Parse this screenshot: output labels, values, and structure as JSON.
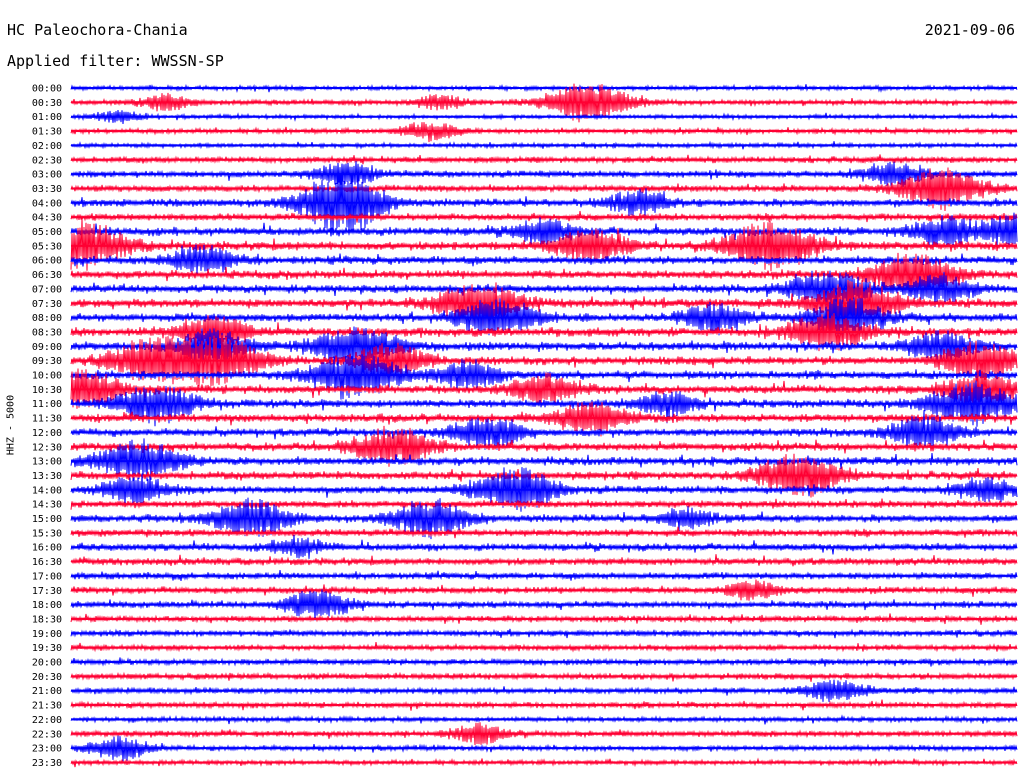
{
  "header": {
    "station": "HC Paleochora-Chania",
    "date": "2021-09-06",
    "filter_text": "Applied filter: WWSSN-SP"
  },
  "channel_label": "HHZ - 5000",
  "colors": {
    "odd": "#0000ff",
    "even": "#ff0033",
    "text": "#000000"
  },
  "chart_data": {
    "type": "line",
    "title": "HC Paleochora-Chania",
    "ylabel": "HHZ - 5000",
    "series": [
      {
        "time": "00:00",
        "color": "blue",
        "activity": 0.15
      },
      {
        "time": "00:30",
        "color": "red",
        "activity": 0.2,
        "events": [
          [
            0.1,
            0.35
          ],
          [
            0.39,
            0.3
          ],
          [
            0.545,
            0.9
          ]
        ]
      },
      {
        "time": "01:00",
        "color": "blue",
        "activity": 0.12,
        "events": [
          [
            0.05,
            0.25
          ]
        ]
      },
      {
        "time": "01:30",
        "color": "red",
        "activity": 0.2,
        "events": [
          [
            0.38,
            0.4
          ]
        ]
      },
      {
        "time": "02:00",
        "color": "blue",
        "activity": 0.15
      },
      {
        "time": "02:30",
        "color": "red",
        "activity": 0.3
      },
      {
        "time": "03:00",
        "color": "blue",
        "activity": 0.35,
        "events": [
          [
            0.29,
            0.5
          ],
          [
            0.87,
            0.5
          ]
        ]
      },
      {
        "time": "03:30",
        "color": "red",
        "activity": 0.35,
        "events": [
          [
            0.92,
            0.9
          ]
        ]
      },
      {
        "time": "04:00",
        "color": "blue",
        "activity": 0.45,
        "events": [
          [
            0.28,
            0.9
          ],
          [
            0.3,
            0.6
          ],
          [
            0.6,
            0.5
          ]
        ]
      },
      {
        "time": "04:30",
        "color": "red",
        "activity": 0.4
      },
      {
        "time": "05:00",
        "color": "blue",
        "activity": 0.5,
        "events": [
          [
            0.5,
            0.5
          ],
          [
            0.92,
            0.6
          ],
          [
            1.0,
            0.7
          ]
        ]
      },
      {
        "time": "05:30",
        "color": "red",
        "activity": 0.55,
        "events": [
          [
            0.01,
            1.0
          ],
          [
            0.55,
            0.7
          ],
          [
            0.74,
            1.0
          ]
        ]
      },
      {
        "time": "06:00",
        "color": "blue",
        "activity": 0.5,
        "events": [
          [
            0.14,
            0.6
          ]
        ]
      },
      {
        "time": "06:30",
        "color": "red",
        "activity": 0.5,
        "events": [
          [
            0.89,
            0.9
          ]
        ]
      },
      {
        "time": "07:00",
        "color": "blue",
        "activity": 0.5,
        "events": [
          [
            0.8,
            0.8
          ],
          [
            0.92,
            0.6
          ]
        ]
      },
      {
        "time": "07:30",
        "color": "red",
        "activity": 0.55,
        "events": [
          [
            0.43,
            0.9
          ],
          [
            0.83,
            0.9
          ]
        ]
      },
      {
        "time": "08:00",
        "color": "blue",
        "activity": 0.5,
        "events": [
          [
            0.45,
            0.8
          ],
          [
            0.82,
            0.8
          ],
          [
            0.68,
            0.6
          ]
        ]
      },
      {
        "time": "08:30",
        "color": "red",
        "activity": 0.55,
        "events": [
          [
            0.15,
            0.7
          ],
          [
            0.8,
            0.8
          ]
        ]
      },
      {
        "time": "09:00",
        "color": "blue",
        "activity": 0.55,
        "events": [
          [
            0.15,
            0.7
          ],
          [
            0.3,
            0.9
          ],
          [
            0.92,
            0.6
          ]
        ]
      },
      {
        "time": "09:30",
        "color": "red",
        "activity": 0.5,
        "events": [
          [
            0.09,
            1.0
          ],
          [
            0.16,
            0.9
          ],
          [
            0.34,
            0.7
          ],
          [
            0.96,
            0.8
          ]
        ]
      },
      {
        "time": "10:00",
        "color": "blue",
        "activity": 0.5,
        "events": [
          [
            0.3,
            1.0
          ],
          [
            0.42,
            0.6
          ]
        ]
      },
      {
        "time": "10:30",
        "color": "red",
        "activity": 0.5,
        "events": [
          [
            0.01,
            0.8
          ],
          [
            0.5,
            0.6
          ],
          [
            0.96,
            0.7
          ]
        ]
      },
      {
        "time": "11:00",
        "color": "blue",
        "activity": 0.5,
        "events": [
          [
            0.09,
            0.8
          ],
          [
            0.63,
            0.5
          ],
          [
            0.95,
            0.9
          ]
        ]
      },
      {
        "time": "11:30",
        "color": "red",
        "activity": 0.5,
        "events": [
          [
            0.55,
            0.7
          ]
        ]
      },
      {
        "time": "12:00",
        "color": "blue",
        "activity": 0.45,
        "events": [
          [
            0.44,
            0.7
          ],
          [
            0.9,
            0.7
          ]
        ]
      },
      {
        "time": "12:30",
        "color": "red",
        "activity": 0.5,
        "events": [
          [
            0.34,
            0.8
          ]
        ]
      },
      {
        "time": "13:00",
        "color": "blue",
        "activity": 0.5,
        "events": [
          [
            0.07,
            0.9
          ]
        ]
      },
      {
        "time": "13:30",
        "color": "red",
        "activity": 0.5,
        "events": [
          [
            0.77,
            0.9
          ]
        ]
      },
      {
        "time": "14:00",
        "color": "blue",
        "activity": 0.45,
        "events": [
          [
            0.07,
            0.6
          ],
          [
            0.47,
            0.9
          ],
          [
            0.97,
            0.5
          ]
        ]
      },
      {
        "time": "14:30",
        "color": "red",
        "activity": 0.4
      },
      {
        "time": "15:00",
        "color": "blue",
        "activity": 0.45,
        "events": [
          [
            0.19,
            0.8
          ],
          [
            0.38,
            0.8
          ],
          [
            0.65,
            0.4
          ]
        ]
      },
      {
        "time": "15:30",
        "color": "red",
        "activity": 0.4
      },
      {
        "time": "16:00",
        "color": "blue",
        "activity": 0.4,
        "events": [
          [
            0.24,
            0.4
          ]
        ]
      },
      {
        "time": "16:30",
        "color": "red",
        "activity": 0.4
      },
      {
        "time": "17:00",
        "color": "blue",
        "activity": 0.35
      },
      {
        "time": "17:30",
        "color": "red",
        "activity": 0.35,
        "events": [
          [
            0.72,
            0.4
          ]
        ]
      },
      {
        "time": "18:00",
        "color": "blue",
        "activity": 0.35,
        "events": [
          [
            0.26,
            0.6
          ]
        ]
      },
      {
        "time": "18:30",
        "color": "red",
        "activity": 0.3
      },
      {
        "time": "19:00",
        "color": "blue",
        "activity": 0.3
      },
      {
        "time": "19:30",
        "color": "red",
        "activity": 0.25
      },
      {
        "time": "20:00",
        "color": "blue",
        "activity": 0.3
      },
      {
        "time": "20:30",
        "color": "red",
        "activity": 0.3
      },
      {
        "time": "21:00",
        "color": "blue",
        "activity": 0.28,
        "events": [
          [
            0.81,
            0.5
          ]
        ]
      },
      {
        "time": "21:30",
        "color": "red",
        "activity": 0.25
      },
      {
        "time": "22:00",
        "color": "blue",
        "activity": 0.2
      },
      {
        "time": "22:30",
        "color": "red",
        "activity": 0.28,
        "events": [
          [
            0.43,
            0.4
          ]
        ]
      },
      {
        "time": "23:00",
        "color": "blue",
        "activity": 0.22,
        "events": [
          [
            0.05,
            0.5
          ]
        ]
      },
      {
        "time": "23:30",
        "color": "red",
        "activity": 0.18
      }
    ]
  }
}
